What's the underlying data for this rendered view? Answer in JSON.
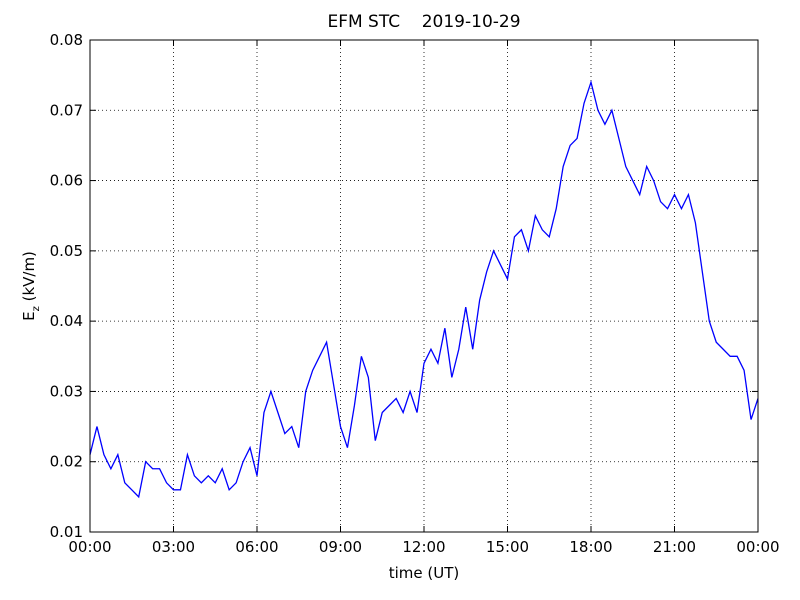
{
  "chart_data": {
    "type": "line",
    "title": "EFM STC    2019-10-29",
    "xlabel": "time (UT)",
    "ylabel": [
      "E",
      "z",
      " (kV/m)"
    ],
    "x": [
      0,
      0.25,
      0.5,
      0.75,
      1,
      1.25,
      1.5,
      1.75,
      2,
      2.25,
      2.5,
      2.75,
      3,
      3.25,
      3.5,
      3.75,
      4,
      4.25,
      4.5,
      4.75,
      5,
      5.25,
      5.5,
      5.75,
      6,
      6.25,
      6.5,
      6.75,
      7,
      7.25,
      7.5,
      7.75,
      8,
      8.25,
      8.5,
      8.75,
      9,
      9.25,
      9.5,
      9.75,
      10,
      10.25,
      10.5,
      10.75,
      11,
      11.25,
      11.5,
      11.75,
      12,
      12.25,
      12.5,
      12.75,
      13,
      13.25,
      13.5,
      13.75,
      14,
      14.25,
      14.5,
      14.75,
      15,
      15.25,
      15.5,
      15.75,
      16,
      16.25,
      16.5,
      16.75,
      17,
      17.25,
      17.5,
      17.75,
      18,
      18.25,
      18.5,
      18.75,
      19,
      19.25,
      19.5,
      19.75,
      20,
      20.25,
      20.5,
      20.75,
      21,
      21.25,
      21.5,
      21.75,
      22,
      22.25,
      22.5,
      22.75,
      23,
      23.25,
      23.5,
      23.75,
      24
    ],
    "series": [
      {
        "name": "Ez",
        "color": "#0000ff",
        "values": [
          0.021,
          0.025,
          0.021,
          0.019,
          0.021,
          0.017,
          0.016,
          0.015,
          0.02,
          0.019,
          0.019,
          0.017,
          0.016,
          0.016,
          0.021,
          0.018,
          0.017,
          0.018,
          0.017,
          0.019,
          0.016,
          0.017,
          0.02,
          0.022,
          0.018,
          0.027,
          0.03,
          0.027,
          0.024,
          0.025,
          0.022,
          0.03,
          0.033,
          0.035,
          0.037,
          0.031,
          0.025,
          0.022,
          0.028,
          0.035,
          0.032,
          0.023,
          0.027,
          0.028,
          0.029,
          0.027,
          0.03,
          0.027,
          0.034,
          0.036,
          0.034,
          0.039,
          0.032,
          0.036,
          0.042,
          0.036,
          0.043,
          0.047,
          0.05,
          0.048,
          0.046,
          0.052,
          0.053,
          0.05,
          0.055,
          0.053,
          0.052,
          0.056,
          0.062,
          0.065,
          0.066,
          0.071,
          0.074,
          0.07,
          0.068,
          0.07,
          0.066,
          0.062,
          0.06,
          0.058,
          0.062,
          0.06,
          0.057,
          0.056,
          0.058,
          0.056,
          0.058,
          0.054,
          0.047,
          0.04,
          0.037,
          0.036,
          0.035,
          0.035,
          0.033,
          0.026,
          0.029
        ]
      }
    ],
    "xlim": [
      0,
      24
    ],
    "xticks": [
      {
        "value": 0,
        "label": "00:00"
      },
      {
        "value": 3,
        "label": "03:00"
      },
      {
        "value": 6,
        "label": "06:00"
      },
      {
        "value": 9,
        "label": "09:00"
      },
      {
        "value": 12,
        "label": "12:00"
      },
      {
        "value": 15,
        "label": "15:00"
      },
      {
        "value": 18,
        "label": "18:00"
      },
      {
        "value": 21,
        "label": "21:00"
      },
      {
        "value": 24,
        "label": "00:00"
      }
    ],
    "ylim": [
      0.01,
      0.08
    ],
    "yticks": [
      0.01,
      0.02,
      0.03,
      0.04,
      0.05,
      0.06,
      0.07,
      0.08
    ],
    "grid": true
  }
}
